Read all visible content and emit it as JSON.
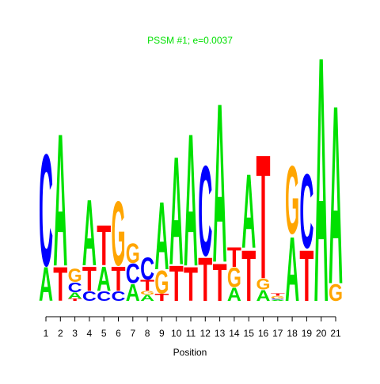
{
  "chart_data": {
    "type": "logo",
    "title": "PSSM #1; e=0.0037",
    "x_label": "Position",
    "colors": {
      "A": "#00e000",
      "C": "#0000ff",
      "G": "#ffa500",
      "T": "#ff0000"
    },
    "ylim": [
      0,
      2.1
    ],
    "positions": [
      {
        "label": "1",
        "letters": [
          "A",
          "C"
        ],
        "heights": [
          0.28,
          0.92
        ]
      },
      {
        "label": "2",
        "letters": [
          "T",
          "A"
        ],
        "heights": [
          0.28,
          1.09
        ]
      },
      {
        "label": "3",
        "letters": [
          "T",
          "A",
          "C",
          "G"
        ],
        "heights": [
          0.02,
          0.05,
          0.08,
          0.11
        ]
      },
      {
        "label": "4",
        "letters": [
          "C",
          "T",
          "A"
        ],
        "heights": [
          0.08,
          0.2,
          0.54
        ]
      },
      {
        "label": "5",
        "letters": [
          "C",
          "A",
          "T"
        ],
        "heights": [
          0.08,
          0.2,
          0.33
        ]
      },
      {
        "label": "6",
        "letters": [
          "C",
          "T",
          "G"
        ],
        "heights": [
          0.08,
          0.2,
          0.53
        ]
      },
      {
        "label": "7",
        "letters": [
          "A",
          "C",
          "G"
        ],
        "heights": [
          0.14,
          0.16,
          0.16
        ]
      },
      {
        "label": "8",
        "letters": [
          "A",
          "G",
          "T",
          "C"
        ],
        "heights": [
          0.05,
          0.03,
          0.09,
          0.18
        ]
      },
      {
        "label": "9",
        "letters": [
          "T",
          "G",
          "A"
        ],
        "heights": [
          0.06,
          0.19,
          0.56
        ]
      },
      {
        "label": "10",
        "letters": [
          "T",
          "A"
        ],
        "heights": [
          0.29,
          0.89
        ]
      },
      {
        "label": "11",
        "letters": [
          "T",
          "A"
        ],
        "heights": [
          0.28,
          1.09
        ]
      },
      {
        "label": "12",
        "letters": [
          "T",
          "C"
        ],
        "heights": [
          0.36,
          0.74
        ]
      },
      {
        "label": "13",
        "letters": [
          "T",
          "A"
        ],
        "heights": [
          0.31,
          1.31
        ]
      },
      {
        "label": "14",
        "letters": [
          "A",
          "G",
          "T"
        ],
        "heights": [
          0.11,
          0.16,
          0.16
        ]
      },
      {
        "label": "15",
        "letters": [
          "T",
          "A"
        ],
        "heights": [
          0.42,
          0.61
        ]
      },
      {
        "label": "16",
        "letters": [
          "A",
          "G",
          "T"
        ],
        "heights": [
          0.09,
          0.09,
          1.02
        ]
      },
      {
        "label": "17",
        "letters": [
          "A",
          "C",
          "G",
          "T"
        ],
        "heights": [
          0.01,
          0.01,
          0.02,
          0.02
        ]
      },
      {
        "label": "18",
        "letters": [
          "A",
          "G"
        ],
        "heights": [
          0.53,
          0.56
        ]
      },
      {
        "label": "19",
        "letters": [
          "T",
          "C"
        ],
        "heights": [
          0.42,
          0.61
        ]
      },
      {
        "label": "20",
        "letters": [
          "A"
        ],
        "heights": [
          2.02
        ]
      },
      {
        "label": "21",
        "letters": [
          "G",
          "A"
        ],
        "heights": [
          0.14,
          1.47
        ]
      }
    ]
  }
}
